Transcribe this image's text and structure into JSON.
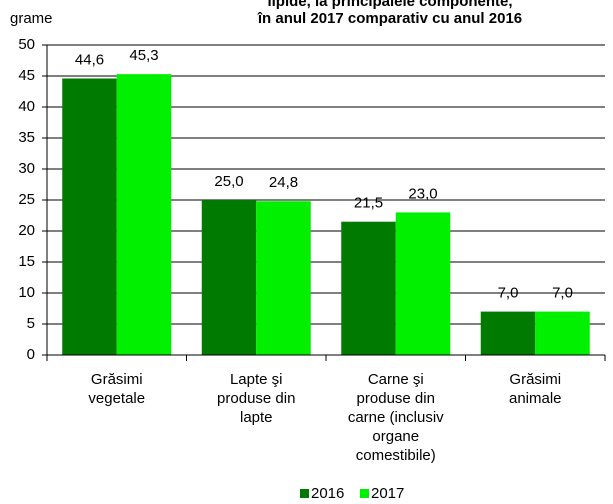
{
  "chart_data": {
    "type": "bar",
    "title_lines": [
      "lipide, la principalele componente,",
      "în anul 2017 comparativ cu anul 2016"
    ],
    "y_label": "grame",
    "categories": [
      [
        "Grăsimi",
        "vegetale"
      ],
      [
        "Lapte şi",
        "produse din",
        "lapte"
      ],
      [
        "Carne şi",
        "produse din",
        "carne (inclusiv",
        "organe",
        "comestibile)"
      ],
      [
        "Grăsimi",
        "animale"
      ]
    ],
    "series": [
      {
        "name": "2016",
        "color": "#007a00",
        "values": [
          44.6,
          25.0,
          21.5,
          7.0
        ],
        "value_labels": [
          "44,6",
          "25,0",
          "21,5",
          "7,0"
        ]
      },
      {
        "name": "2017",
        "color": "#00f000",
        "values": [
          45.3,
          24.8,
          23.0,
          7.0
        ],
        "value_labels": [
          "45,3",
          "24,8",
          "23,0",
          "7,0"
        ]
      }
    ],
    "ylim": [
      0,
      50
    ],
    "yticks": [
      0,
      5,
      10,
      15,
      20,
      25,
      30,
      35,
      40,
      45,
      50
    ],
    "grid": true,
    "legend": "bottom"
  }
}
